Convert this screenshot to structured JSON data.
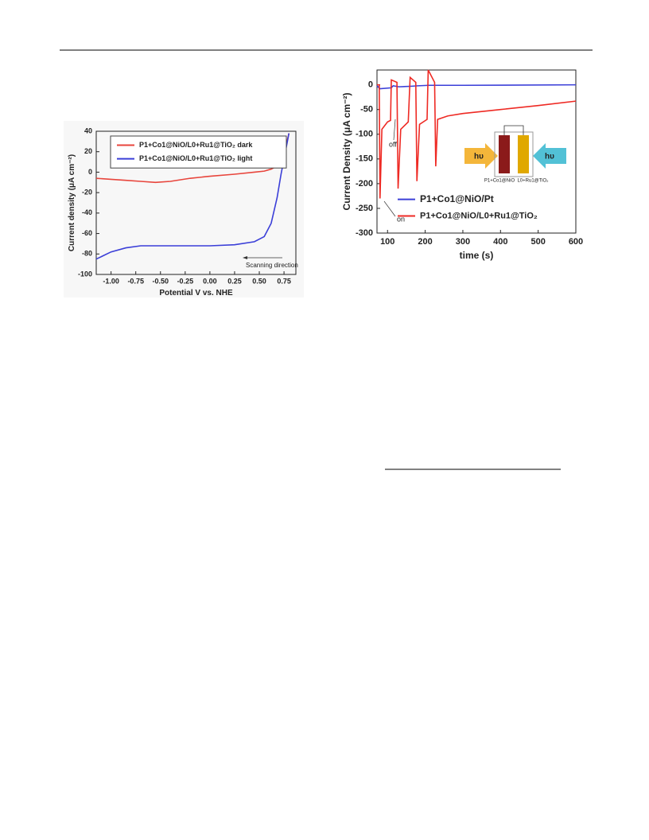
{
  "chart_data": [
    {
      "type": "line",
      "x_label": "Potential V vs. NHE",
      "y_label": "Current density (μA cm⁻²)",
      "x": [
        -1.15,
        -1.0,
        -0.85,
        -0.7,
        -0.55,
        -0.4,
        -0.2,
        0,
        0.25,
        0.45,
        0.55,
        0.62,
        0.68,
        0.72,
        0.76,
        0.8
      ],
      "series": [
        {
          "name": "P1+Co1@NiO/L0+Ru1@TiO₂ dark",
          "color": "#e8453c",
          "values": [
            -6,
            -7,
            -8,
            -9,
            -10,
            -9,
            -6,
            -4,
            -2,
            0,
            1,
            3,
            6,
            10,
            22,
            38
          ]
        },
        {
          "name": "P1+Co1@NiO/L0+Ru1@TiO₂ light",
          "color": "#3b3fd8",
          "values": [
            -85,
            -78,
            -74,
            -72,
            -72,
            -72,
            -72,
            -72,
            -71,
            -68,
            -63,
            -50,
            -25,
            -2,
            18,
            38
          ]
        }
      ],
      "xlim": [
        -1.15,
        0.87
      ],
      "xticks": [
        {
          "value": -1,
          "label": "-1.00"
        },
        -0.75,
        {
          "value": -0.5,
          "label": "-0.50"
        },
        -0.25,
        {
          "value": 0,
          "label": "0.00"
        },
        0.25,
        {
          "value": 0.5,
          "label": "0.50"
        },
        0.75
      ],
      "ylim": [
        -100,
        40
      ],
      "yticks": [
        -100,
        -80,
        -60,
        -40,
        -20,
        0,
        20,
        40
      ],
      "legend": "upper left",
      "annotations": [
        "Scanning direction"
      ]
    },
    {
      "type": "line",
      "x_label": "time (s)",
      "y_label": "Current Density (μA cm⁻²)",
      "series": [
        {
          "name": "P1+Co1@NiO/Pt",
          "color": "#3b3fd8",
          "x": [
            72,
            80,
            110,
            115,
            130,
            160,
            180,
            210,
            230,
            300,
            600
          ],
          "values": [
            -2,
            -8,
            -6,
            -2,
            -4,
            -3,
            -2,
            -1,
            -1,
            -1,
            0
          ]
        },
        {
          "name": "P1+Co1@NiO/L0+Ru1@TiO₂",
          "color": "#ee2a24",
          "x": [
            72,
            78,
            80,
            85,
            100,
            108,
            110,
            125,
            128,
            135,
            155,
            160,
            175,
            178,
            185,
            205,
            208,
            225,
            228,
            233,
            260,
            300,
            400,
            500,
            600
          ],
          "values": [
            0,
            0,
            -230,
            -90,
            -75,
            -72,
            10,
            5,
            -210,
            -90,
            -75,
            15,
            5,
            -195,
            -80,
            -70,
            30,
            5,
            -165,
            -70,
            -63,
            -58,
            -50,
            -42,
            -33
          ]
        }
      ],
      "xlim": [
        72,
        600
      ],
      "xticks": [
        100,
        200,
        300,
        400,
        500,
        600
      ],
      "ylim": [
        -300,
        30
      ],
      "yticks": [
        -300,
        -250,
        -200,
        -150,
        -100,
        -50,
        0
      ],
      "legend": "lower left",
      "annotations": [
        "off",
        "on",
        "hυ",
        "hυ",
        "P1+Co1@NiO",
        "L0+Ru1@TiO₂"
      ]
    }
  ]
}
